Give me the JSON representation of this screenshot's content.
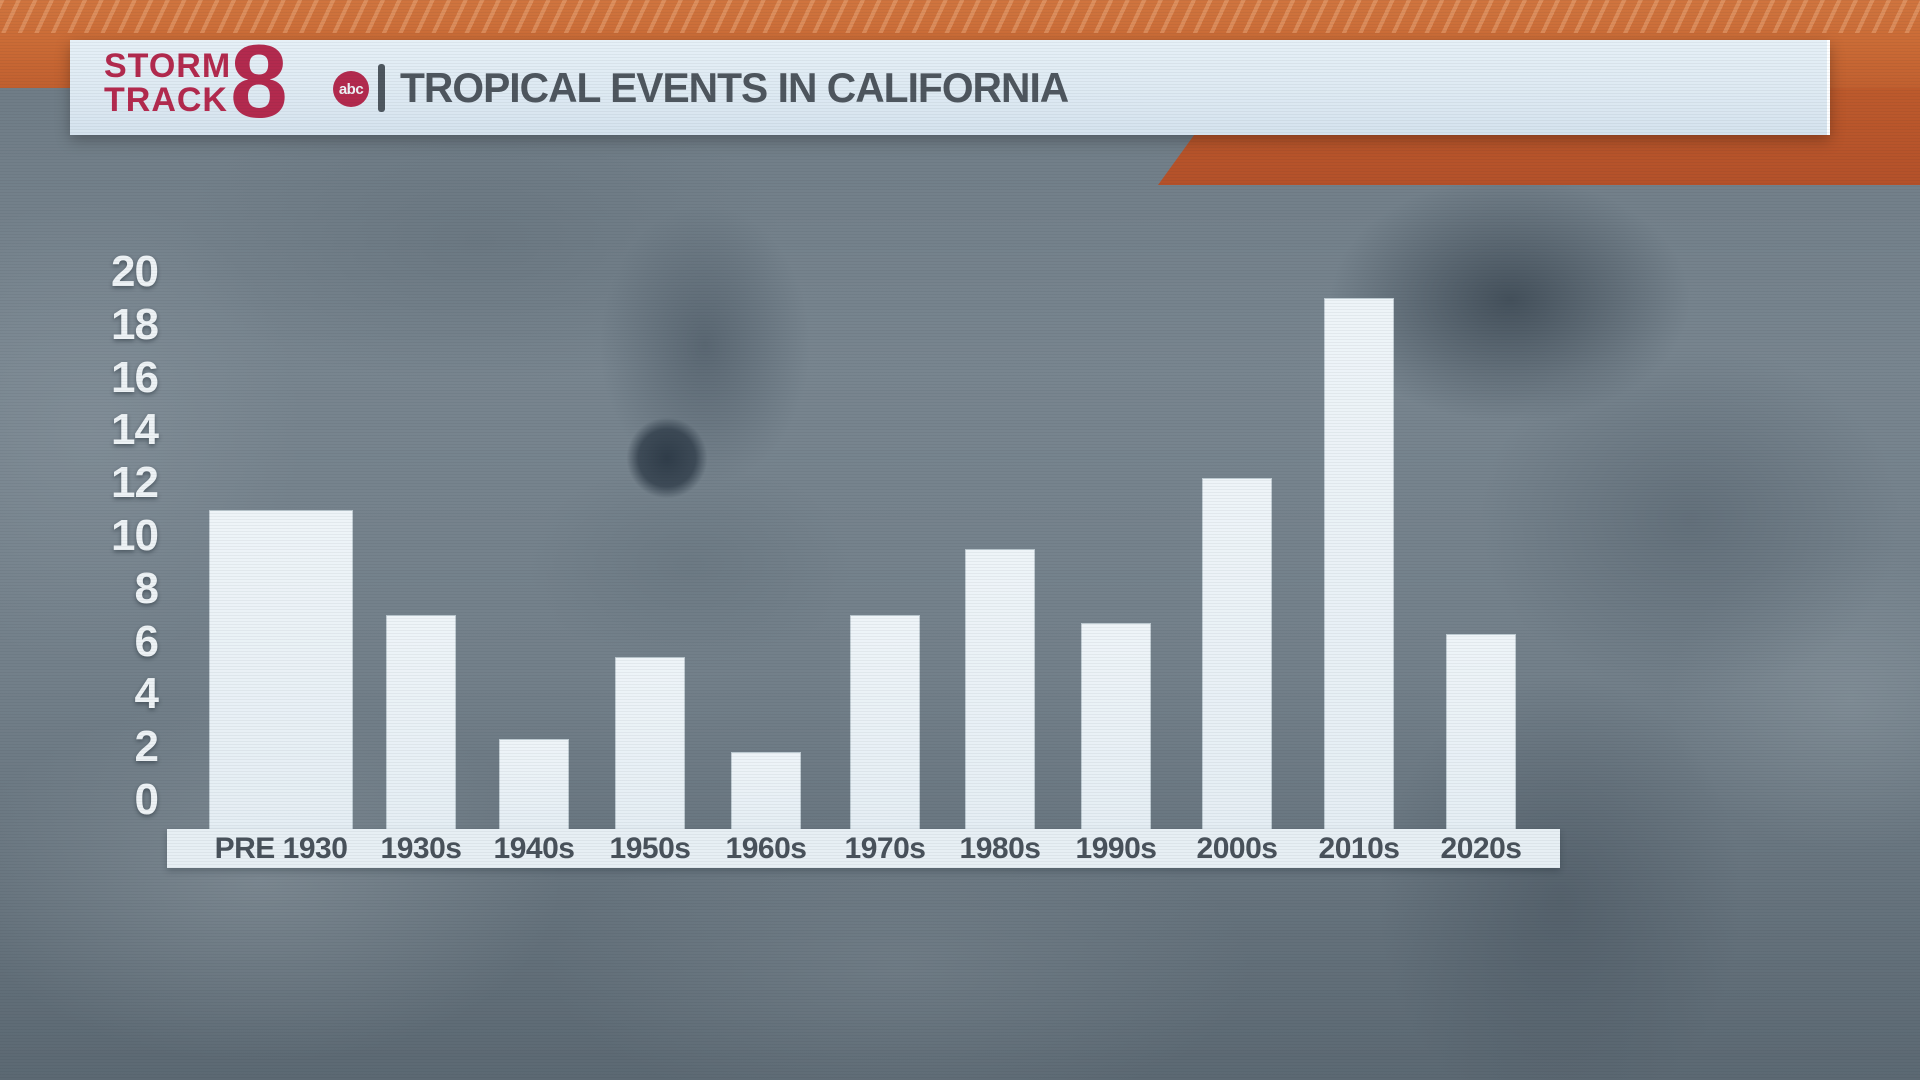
{
  "header": {
    "logo": {
      "line1": "STORM",
      "line2": "TRACK",
      "station_number": "8",
      "network": "abc"
    },
    "title": "TROPICAL EVENTS IN CALIFORNIA"
  },
  "colors": {
    "ribbon_orange": "#ca6a35",
    "ribbon_orange_dark": "#b4512a",
    "logo_crimson": "#b32a4e",
    "header_bg": "#dfeaf2",
    "title_text": "#4e565e",
    "bar_fill": "#e7eff4",
    "y_axis_text": "#edf2f5",
    "x_axis_text": "#49525b"
  },
  "chart_data": {
    "type": "bar",
    "title": "TROPICAL EVENTS IN CALIFORNIA",
    "categories": [
      "PRE 1930",
      "1930s",
      "1940s",
      "1950s",
      "1960s",
      "1970s",
      "1980s",
      "1990s",
      "2000s",
      "2010s",
      "2020s"
    ],
    "values": [
      11,
      7,
      2.3,
      5.4,
      1.8,
      7,
      9.5,
      6.7,
      12.2,
      19,
      6.3
    ],
    "xlabel": "",
    "ylabel": "",
    "ylim": [
      0,
      20
    ],
    "yticks": [
      0,
      2,
      4,
      6,
      8,
      10,
      12,
      14,
      16,
      18,
      20
    ],
    "grid": false,
    "legend": null
  }
}
